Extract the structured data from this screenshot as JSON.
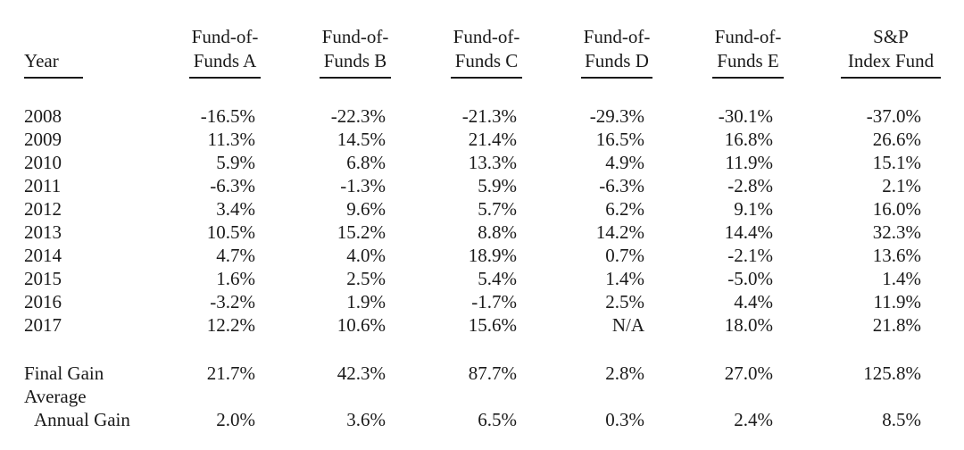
{
  "headers": {
    "year": "Year",
    "cols": [
      {
        "line1": "Fund-of-",
        "line2": "Funds A"
      },
      {
        "line1": "Fund-of-",
        "line2": "Funds B"
      },
      {
        "line1": "Fund-of-",
        "line2": "Funds C"
      },
      {
        "line1": "Fund-of-",
        "line2": "Funds D"
      },
      {
        "line1": "Fund-of-",
        "line2": "Funds E"
      },
      {
        "line1": "S&P",
        "line2": "Index Fund"
      }
    ]
  },
  "rows": [
    {
      "year": "2008",
      "values": [
        "-16.5%",
        "-22.3%",
        "-21.3%",
        "-29.3%",
        "-30.1%",
        "-37.0%"
      ]
    },
    {
      "year": "2009",
      "values": [
        "11.3%",
        "14.5%",
        "21.4%",
        "16.5%",
        "16.8%",
        "26.6%"
      ]
    },
    {
      "year": "2010",
      "values": [
        "5.9%",
        "6.8%",
        "13.3%",
        "4.9%",
        "11.9%",
        "15.1%"
      ]
    },
    {
      "year": "2011",
      "values": [
        "-6.3%",
        "-1.3%",
        "5.9%",
        "-6.3%",
        "-2.8%",
        "2.1%"
      ]
    },
    {
      "year": "2012",
      "values": [
        "3.4%",
        "9.6%",
        "5.7%",
        "6.2%",
        "9.1%",
        "16.0%"
      ]
    },
    {
      "year": "2013",
      "values": [
        "10.5%",
        "15.2%",
        "8.8%",
        "14.2%",
        "14.4%",
        "32.3%"
      ]
    },
    {
      "year": "2014",
      "values": [
        "4.7%",
        "4.0%",
        "18.9%",
        "0.7%",
        "-2.1%",
        "13.6%"
      ]
    },
    {
      "year": "2015",
      "values": [
        "1.6%",
        "2.5%",
        "5.4%",
        "1.4%",
        "-5.0%",
        "1.4%"
      ]
    },
    {
      "year": "2016",
      "values": [
        "-3.2%",
        "1.9%",
        "-1.7%",
        "2.5%",
        "4.4%",
        "11.9%"
      ]
    },
    {
      "year": "2017",
      "values": [
        "12.2%",
        "10.6%",
        "15.6%",
        "N/A",
        "18.0%",
        "21.8%"
      ]
    }
  ],
  "summary": {
    "final_gain_label": "Final Gain",
    "final_gain": [
      "21.7%",
      "42.3%",
      "87.7%",
      "2.8%",
      "27.0%",
      "125.8%"
    ],
    "avg_label_line1": "Average",
    "avg_label_line2": "Annual Gain",
    "avg_gain": [
      "2.0%",
      "3.6%",
      "6.5%",
      "0.3%",
      "2.4%",
      "8.5%"
    ]
  }
}
